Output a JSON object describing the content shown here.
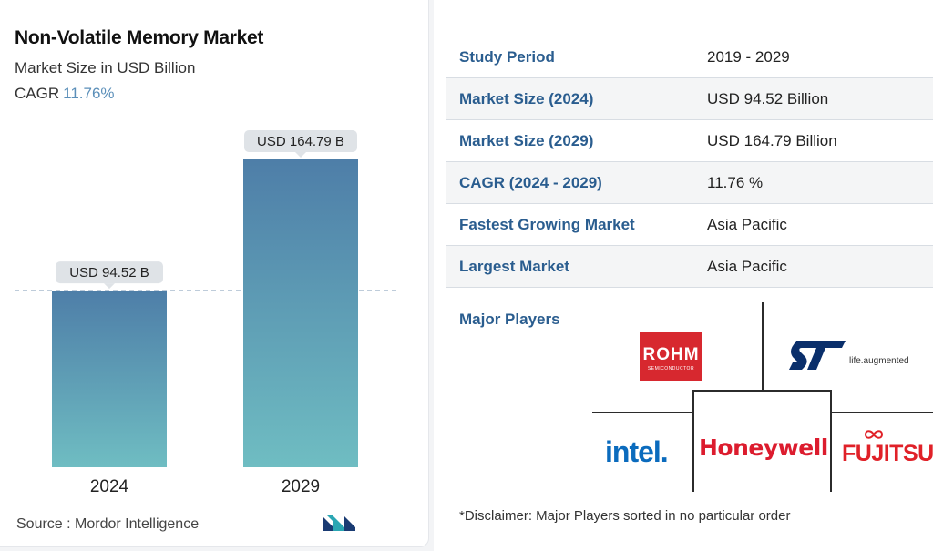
{
  "header": {
    "title": "Non-Volatile Memory Market",
    "subtitle": "Market Size in USD Billion",
    "cagr_label": "CAGR",
    "cagr_value": "11.76%"
  },
  "chart_data": {
    "type": "bar",
    "categories": [
      "2024",
      "2029"
    ],
    "values": [
      94.52,
      164.79
    ],
    "data_labels": [
      "USD 94.52 B",
      "USD 164.79 B"
    ],
    "title": "Non-Volatile Memory Market",
    "xlabel": "",
    "ylabel": "Market Size in USD Billion",
    "ylim": [
      0,
      164.79
    ],
    "reference_line": 94.52
  },
  "colors": {
    "bar_top": "#4e7ea8",
    "bar_bottom": "#6fbdc2",
    "label_bg": "#dfe3e7",
    "accent": "#2a5d8f"
  },
  "source": {
    "text": "Source :  Mordor Intelligence"
  },
  "stats": [
    {
      "key": "Study Period",
      "value": "2019 - 2029"
    },
    {
      "key": "Market Size (2024)",
      "value": "USD 94.52 Billion"
    },
    {
      "key": "Market Size (2029)",
      "value": "USD 164.79 Billion"
    },
    {
      "key": "CAGR (2024 - 2029)",
      "value": "11.76 %"
    },
    {
      "key": "Fastest Growing Market",
      "value": "Asia Pacific"
    },
    {
      "key": "Largest Market",
      "value": "Asia Pacific"
    }
  ],
  "major_players": {
    "label": "Major Players",
    "rohm": "ROHM",
    "rohm_sub": "SEMICONDUCTOR",
    "st_tagline": "life.augmented",
    "intel": "intel.",
    "honeywell": "Honeywell",
    "fujitsu": "FUJITSU"
  },
  "disclaimer": "*Disclaimer: Major Players sorted in no particular order"
}
